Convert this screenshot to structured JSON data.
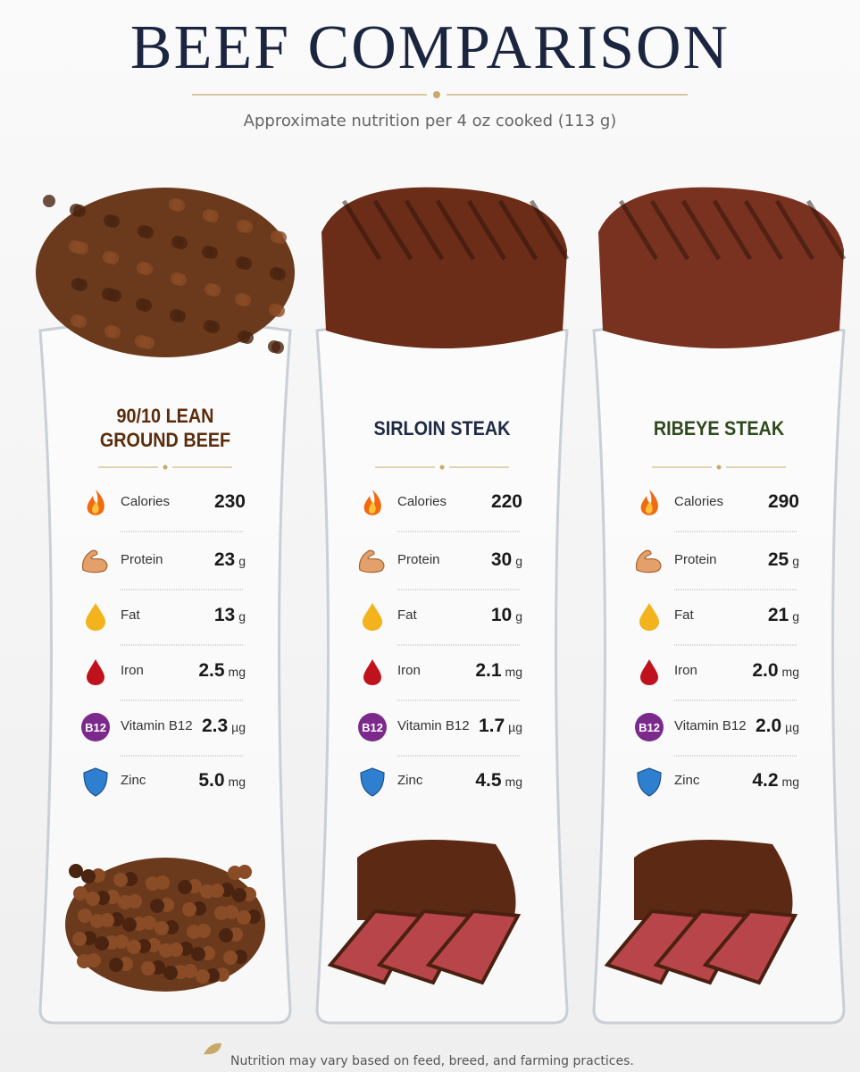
{
  "header": {
    "title": "BEEF COMPARISON",
    "subtitle": "Approximate nutrition per 4 oz cooked (113 g)"
  },
  "columns": [
    {
      "name": "90/10 LEAN GROUND BEEF",
      "rows": [
        {
          "label": "Calories",
          "value": "230"
        },
        {
          "label": "Protein",
          "value": "23",
          "unit": "g"
        },
        {
          "label": "Fat",
          "value": "13",
          "unit": "g"
        },
        {
          "label": "Iron",
          "value": "2.5",
          "unit": "mg"
        },
        {
          "label": "Vitamin B12",
          "value": "2.3",
          "unit": "µg",
          "badge": "B12"
        },
        {
          "label": "Zinc",
          "value": "5.0",
          "unit": "mg"
        }
      ]
    },
    {
      "name": "SIRLOIN STEAK",
      "rows": [
        {
          "label": "Calories",
          "value": "220"
        },
        {
          "label": "Protein",
          "value": "30",
          "unit": "g"
        },
        {
          "label": "Fat",
          "value": "10",
          "unit": "g"
        },
        {
          "label": "Iron",
          "value": "2.1",
          "unit": "mg"
        },
        {
          "label": "Vitamin B12",
          "value": "1.7",
          "unit": "µg",
          "badge": "B12"
        },
        {
          "label": "Zinc",
          "value": "4.5",
          "unit": "mg"
        }
      ]
    },
    {
      "name": "RIBEYE STEAK",
      "rows": [
        {
          "label": "Calories",
          "value": "290"
        },
        {
          "label": "Protein",
          "value": "25",
          "unit": "g"
        },
        {
          "label": "Fat",
          "value": "21",
          "unit": "g"
        },
        {
          "label": "Iron",
          "value": "2.0",
          "unit": "mg"
        },
        {
          "label": "Vitamin B12",
          "value": "2.0",
          "unit": "µg",
          "badge": "B12"
        },
        {
          "label": "Zinc",
          "value": "4.2",
          "unit": "mg"
        }
      ]
    }
  ],
  "footer": "Nutrition may vary based on feed, breed, and farming practices."
}
